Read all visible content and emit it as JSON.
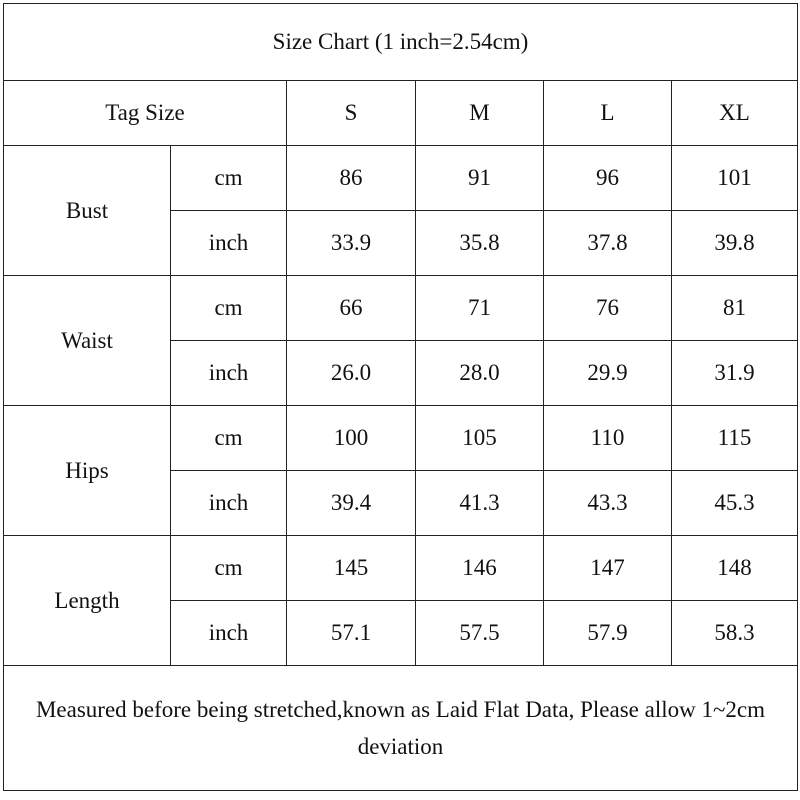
{
  "title": "Size Chart (1 inch=2.54cm)",
  "header": {
    "label": "Tag Size",
    "sizes": [
      "S",
      "M",
      "L",
      "XL"
    ]
  },
  "groups": [
    {
      "name": "Bust",
      "rows": [
        {
          "unit": "cm",
          "values": [
            "86",
            "91",
            "96",
            "101"
          ]
        },
        {
          "unit": "inch",
          "values": [
            "33.9",
            "35.8",
            "37.8",
            "39.8"
          ]
        }
      ]
    },
    {
      "name": "Waist",
      "rows": [
        {
          "unit": "cm",
          "values": [
            "66",
            "71",
            "76",
            "81"
          ]
        },
        {
          "unit": "inch",
          "values": [
            "26.0",
            "28.0",
            "29.9",
            "31.9"
          ]
        }
      ]
    },
    {
      "name": "Hips",
      "rows": [
        {
          "unit": "cm",
          "values": [
            "100",
            "105",
            "110",
            "115"
          ]
        },
        {
          "unit": "inch",
          "values": [
            "39.4",
            "41.3",
            "43.3",
            "45.3"
          ]
        }
      ]
    },
    {
      "name": "Length",
      "rows": [
        {
          "unit": "cm",
          "values": [
            "145",
            "146",
            "147",
            "148"
          ]
        },
        {
          "unit": "inch",
          "values": [
            "57.1",
            "57.5",
            "57.9",
            "58.3"
          ]
        }
      ]
    }
  ],
  "note": "Measured before being stretched,known as Laid Flat Data, Please allow 1~2cm deviation"
}
